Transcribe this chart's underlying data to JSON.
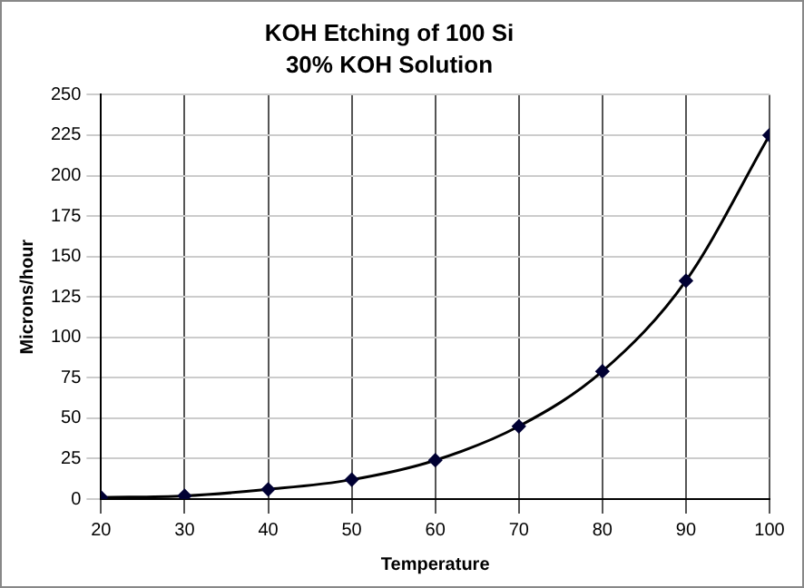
{
  "chart_data": {
    "type": "line",
    "title": "KOH Etching of 100 Si",
    "subtitle": "30% KOH Solution",
    "xlabel": "Temperature",
    "ylabel": "Microns/hour",
    "x": [
      20,
      30,
      40,
      50,
      60,
      70,
      80,
      90,
      100
    ],
    "series": [
      {
        "color": "#000033",
        "values": [
          1,
          2,
          6,
          12,
          24,
          45,
          79,
          135,
          225
        ]
      }
    ],
    "xlim": [
      20,
      100
    ],
    "xticks": [
      20,
      30,
      40,
      50,
      60,
      70,
      80,
      90,
      100
    ],
    "ylim": [
      0,
      250
    ],
    "yticks": [
      0,
      25,
      50,
      75,
      100,
      125,
      150,
      175,
      200,
      225,
      250
    ],
    "grid": true,
    "marker": "diamond",
    "line_style": "solid",
    "legend": false
  }
}
